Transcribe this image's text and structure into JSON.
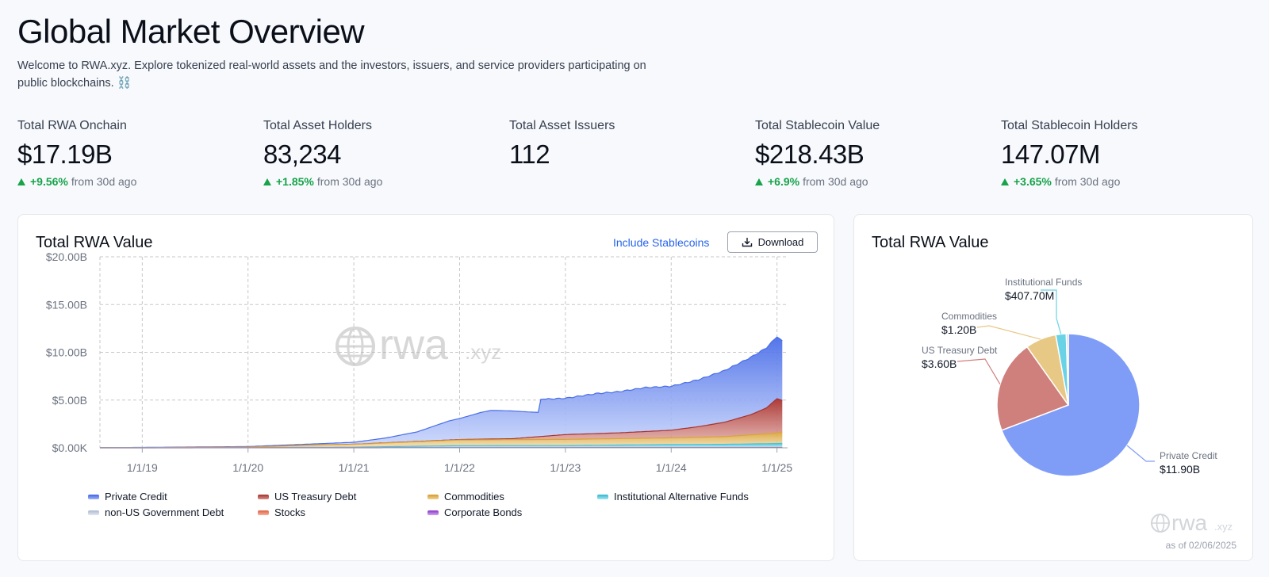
{
  "header": {
    "title": "Global Market Overview",
    "intro": "Welcome to RWA.xyz. Explore tokenized real-world assets and the investors, issuers, and service providers participating on public blockchains. ⛓️"
  },
  "stats": [
    {
      "label": "Total RWA Onchain",
      "value": "$17.19B",
      "change": "+9.56%",
      "change_suffix": "from 30d ago"
    },
    {
      "label": "Total Asset Holders",
      "value": "83,234",
      "change": "+1.85%",
      "change_suffix": "from 30d ago"
    },
    {
      "label": "Total Asset Issuers",
      "value": "112",
      "change": "",
      "change_suffix": ""
    },
    {
      "label": "Total Stablecoin Value",
      "value": "$218.43B",
      "change": "+6.9%",
      "change_suffix": "from 30d ago"
    },
    {
      "label": "Total Stablecoin Holders",
      "value": "147.07M",
      "change": "+3.65%",
      "change_suffix": "from 30d ago"
    }
  ],
  "area_card": {
    "title": "Total RWA Value",
    "include_stablecoins": "Include Stablecoins",
    "download": "Download",
    "watermark": "rwa",
    "watermark_suffix": ".xyz"
  },
  "pie_card": {
    "title": "Total RWA Value",
    "as_of": "as of 02/06/2025",
    "watermark": "rwa",
    "watermark_suffix": ".xyz"
  },
  "colors": {
    "private_credit": "#6d8ff5",
    "us_treasury": "#c96a66",
    "commodities": "#e8c27a",
    "institutional": "#5fd0e3",
    "non_us_gov": "#c9d6ea",
    "stocks": "#f08a6f",
    "corporate_bonds": "#b06be0",
    "pie_private": "#7f9df7",
    "pie_treasury": "#cf7f7c",
    "pie_commodities": "#e8c885",
    "pie_institutional": "#69d2e4",
    "accent": "#2563eb",
    "up": "#16a34a"
  },
  "chart_data": [
    {
      "type": "area",
      "title": "Total RWA Value",
      "y_ticks": [
        "$0.00K",
        "$5.00B",
        "$10.00B",
        "$15.00B",
        "$20.00B"
      ],
      "x_ticks": [
        "1/1/19",
        "1/1/20",
        "1/1/21",
        "1/1/22",
        "1/1/23",
        "1/1/24",
        "1/1/25"
      ],
      "ylim": [
        0,
        20
      ],
      "xlim": [
        2018.6,
        2025.1
      ],
      "grid": true,
      "stacked": true,
      "legend_position": "bottom",
      "series": [
        {
          "name": "Private Credit",
          "x": [
            2018.6,
            2019.0,
            2020.0,
            2020.5,
            2021.0,
            2021.3,
            2021.6,
            2021.75,
            2021.9,
            2022.0,
            2022.2,
            2022.3,
            2022.5,
            2022.7,
            2022.75,
            2022.76,
            2023.0,
            2023.3,
            2023.5,
            2023.75,
            2024.0,
            2024.25,
            2024.5,
            2024.75,
            2024.9,
            2025.0,
            2025.05
          ],
          "values": [
            0.0,
            0.02,
            0.05,
            0.1,
            0.2,
            0.5,
            1.0,
            1.5,
            2.0,
            2.2,
            2.8,
            3.0,
            2.9,
            2.6,
            2.55,
            3.9,
            3.8,
            4.2,
            4.3,
            4.6,
            4.6,
            4.9,
            5.4,
            6.0,
            6.3,
            6.5,
            6.2
          ]
        },
        {
          "name": "US Treasury Debt",
          "x": [
            2018.6,
            2019.0,
            2020.0,
            2021.0,
            2022.0,
            2022.5,
            2023.0,
            2023.5,
            2024.0,
            2024.25,
            2024.5,
            2024.75,
            2024.9,
            2025.0,
            2025.05
          ],
          "values": [
            0,
            0,
            0,
            0.01,
            0.04,
            0.1,
            0.5,
            0.6,
            0.8,
            1.1,
            1.5,
            2.1,
            2.7,
            3.6,
            3.3
          ]
        },
        {
          "name": "Commodities",
          "x": [
            2018.6,
            2019.0,
            2020.0,
            2020.5,
            2021.0,
            2022.0,
            2023.0,
            2024.0,
            2024.5,
            2025.0,
            2025.05
          ],
          "values": [
            0,
            0,
            0.05,
            0.2,
            0.3,
            0.6,
            0.65,
            0.7,
            0.8,
            1.1,
            1.2
          ]
        },
        {
          "name": "Institutional Alternative Funds",
          "x": [
            2018.6,
            2019.0,
            2020.0,
            2021.0,
            2022.0,
            2023.0,
            2024.0,
            2024.5,
            2025.0,
            2025.05
          ],
          "values": [
            0.02,
            0.02,
            0.02,
            0.05,
            0.2,
            0.2,
            0.3,
            0.32,
            0.4,
            0.41
          ]
        },
        {
          "name": "non-US Government Debt",
          "x": [
            2018.6,
            2025.05
          ],
          "values": [
            0.0,
            0.02
          ]
        },
        {
          "name": "Stocks",
          "x": [
            2018.6,
            2025.05
          ],
          "values": [
            0.0,
            0.02
          ]
        },
        {
          "name": "Corporate Bonds",
          "x": [
            2018.6,
            2025.05
          ],
          "values": [
            0.0,
            0.01
          ]
        }
      ]
    },
    {
      "type": "pie",
      "title": "Total RWA Value",
      "slices": [
        {
          "label": "Private Credit",
          "value": 11.9,
          "display": "$11.90B"
        },
        {
          "label": "US Treasury Debt",
          "value": 3.6,
          "display": "$3.60B"
        },
        {
          "label": "Commodities",
          "value": 1.2,
          "display": "$1.20B"
        },
        {
          "label": "Institutional Funds",
          "value": 0.4077,
          "display": "$407.70M"
        },
        {
          "label": "",
          "value": 0.08,
          "display": ""
        }
      ]
    }
  ],
  "legend": [
    "Private Credit",
    "US Treasury Debt",
    "Commodities",
    "Institutional Alternative Funds",
    "non-US Government Debt",
    "Stocks",
    "Corporate Bonds"
  ]
}
